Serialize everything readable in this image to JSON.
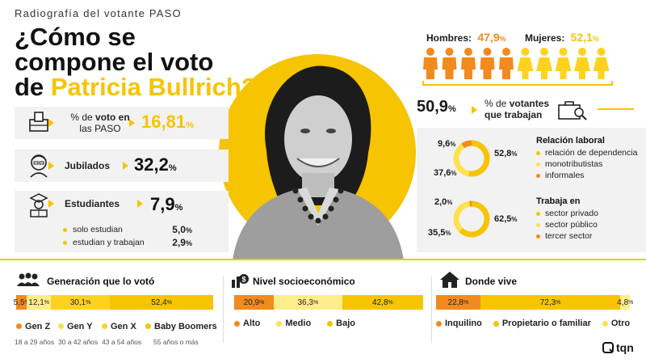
{
  "header": {
    "kicker": "Radiografía del votante PASO",
    "headline_a": "¿Cómo se",
    "headline_b": "compone el voto",
    "headline_c": "de",
    "headline_name": "Patricia Bullrich?"
  },
  "left_stats": {
    "voto": {
      "label_a": "% de",
      "label_b": "voto en",
      "label_c": "las PASO",
      "value": "16,81",
      "unit": "%"
    },
    "jubilados": {
      "label": "Jubilados",
      "value": "32,2",
      "unit": "%"
    },
    "estudiantes": {
      "label": "Estudiantes",
      "value": "7,9",
      "unit": "%",
      "rows": [
        {
          "label": "solo estudian",
          "value": "5,0",
          "unit": "%"
        },
        {
          "label": "estudian y trabajan",
          "value": "2,9",
          "unit": "%"
        }
      ]
    }
  },
  "gender": {
    "men_label": "Hombres:",
    "men_value": "47,9",
    "men_unit": "%",
    "women_label": "Mujeres:",
    "women_value": "52,1",
    "women_unit": "%"
  },
  "work": {
    "value": "50,9",
    "unit": "%",
    "label_a": "% de",
    "label_b": "votantes",
    "label_c": "que trabajan"
  },
  "relacion": {
    "title": "Relación laboral",
    "items": [
      "relación de dependencia",
      "monotributistas",
      "informales"
    ],
    "values": [
      {
        "v": "52,8",
        "u": "%"
      },
      {
        "v": "37,6",
        "u": "%"
      },
      {
        "v": "9,6",
        "u": "%"
      }
    ]
  },
  "trabaja": {
    "title": "Trabaja en",
    "items": [
      "sector privado",
      "sector público",
      "tercer sector"
    ],
    "values": [
      {
        "v": "62,5",
        "u": "%"
      },
      {
        "v": "35,5",
        "u": "%"
      },
      {
        "v": "2,0",
        "u": "%"
      }
    ]
  },
  "generacion": {
    "title": "Generación que lo votó",
    "labels": [
      "5,5",
      "12,1",
      "30,1",
      "52,4"
    ],
    "unit": "%",
    "legend": [
      "Gen Z",
      "Gen Y",
      "Gen X",
      "Baby Boomers"
    ],
    "ages": [
      "18 a 29 años",
      "30 a 42 años",
      "43 a 54 años",
      "55 años o más"
    ]
  },
  "nivel": {
    "title": "Nivel socioeconómico",
    "labels": [
      "20,9",
      "36,3",
      "42,8"
    ],
    "unit": "%",
    "legend": [
      "Alto",
      "Medio",
      "Bajo"
    ]
  },
  "vive": {
    "title": "Donde vive",
    "labels": [
      "22,8",
      "72,3",
      "4,8"
    ],
    "unit": "%",
    "legend": [
      "Inquilino",
      "Propietario o familiar",
      "Otro"
    ]
  },
  "brand": "tqn",
  "colors": {
    "yellow": "#f6c400",
    "light_yellow": "#ffe14d",
    "orange": "#f28a1e",
    "pale": "#ffed8a"
  },
  "chart_data": [
    {
      "type": "pie",
      "title": "Relación laboral",
      "categories": [
        "relación de dependencia",
        "monotributistas",
        "informales"
      ],
      "values": [
        52.8,
        37.6,
        9.6
      ]
    },
    {
      "type": "pie",
      "title": "Trabaja en",
      "categories": [
        "sector privado",
        "sector público",
        "tercer sector"
      ],
      "values": [
        62.5,
        35.5,
        2.0
      ]
    },
    {
      "type": "bar",
      "title": "Generación que lo votó",
      "categories": [
        "Gen Z",
        "Gen Y",
        "Gen X",
        "Baby Boomers"
      ],
      "values": [
        5.5,
        12.1,
        30.1,
        52.4
      ]
    },
    {
      "type": "bar",
      "title": "Nivel socioeconómico",
      "categories": [
        "Alto",
        "Medio",
        "Bajo"
      ],
      "values": [
        20.9,
        36.3,
        42.8
      ]
    },
    {
      "type": "bar",
      "title": "Donde vive",
      "categories": [
        "Inquilino",
        "Propietario o familiar",
        "Otro"
      ],
      "values": [
        22.8,
        72.3,
        4.8
      ]
    },
    {
      "type": "bar",
      "title": "",
      "categories": [
        "Hombres",
        "Mujeres"
      ],
      "values": [
        47.9,
        52.1
      ]
    }
  ]
}
